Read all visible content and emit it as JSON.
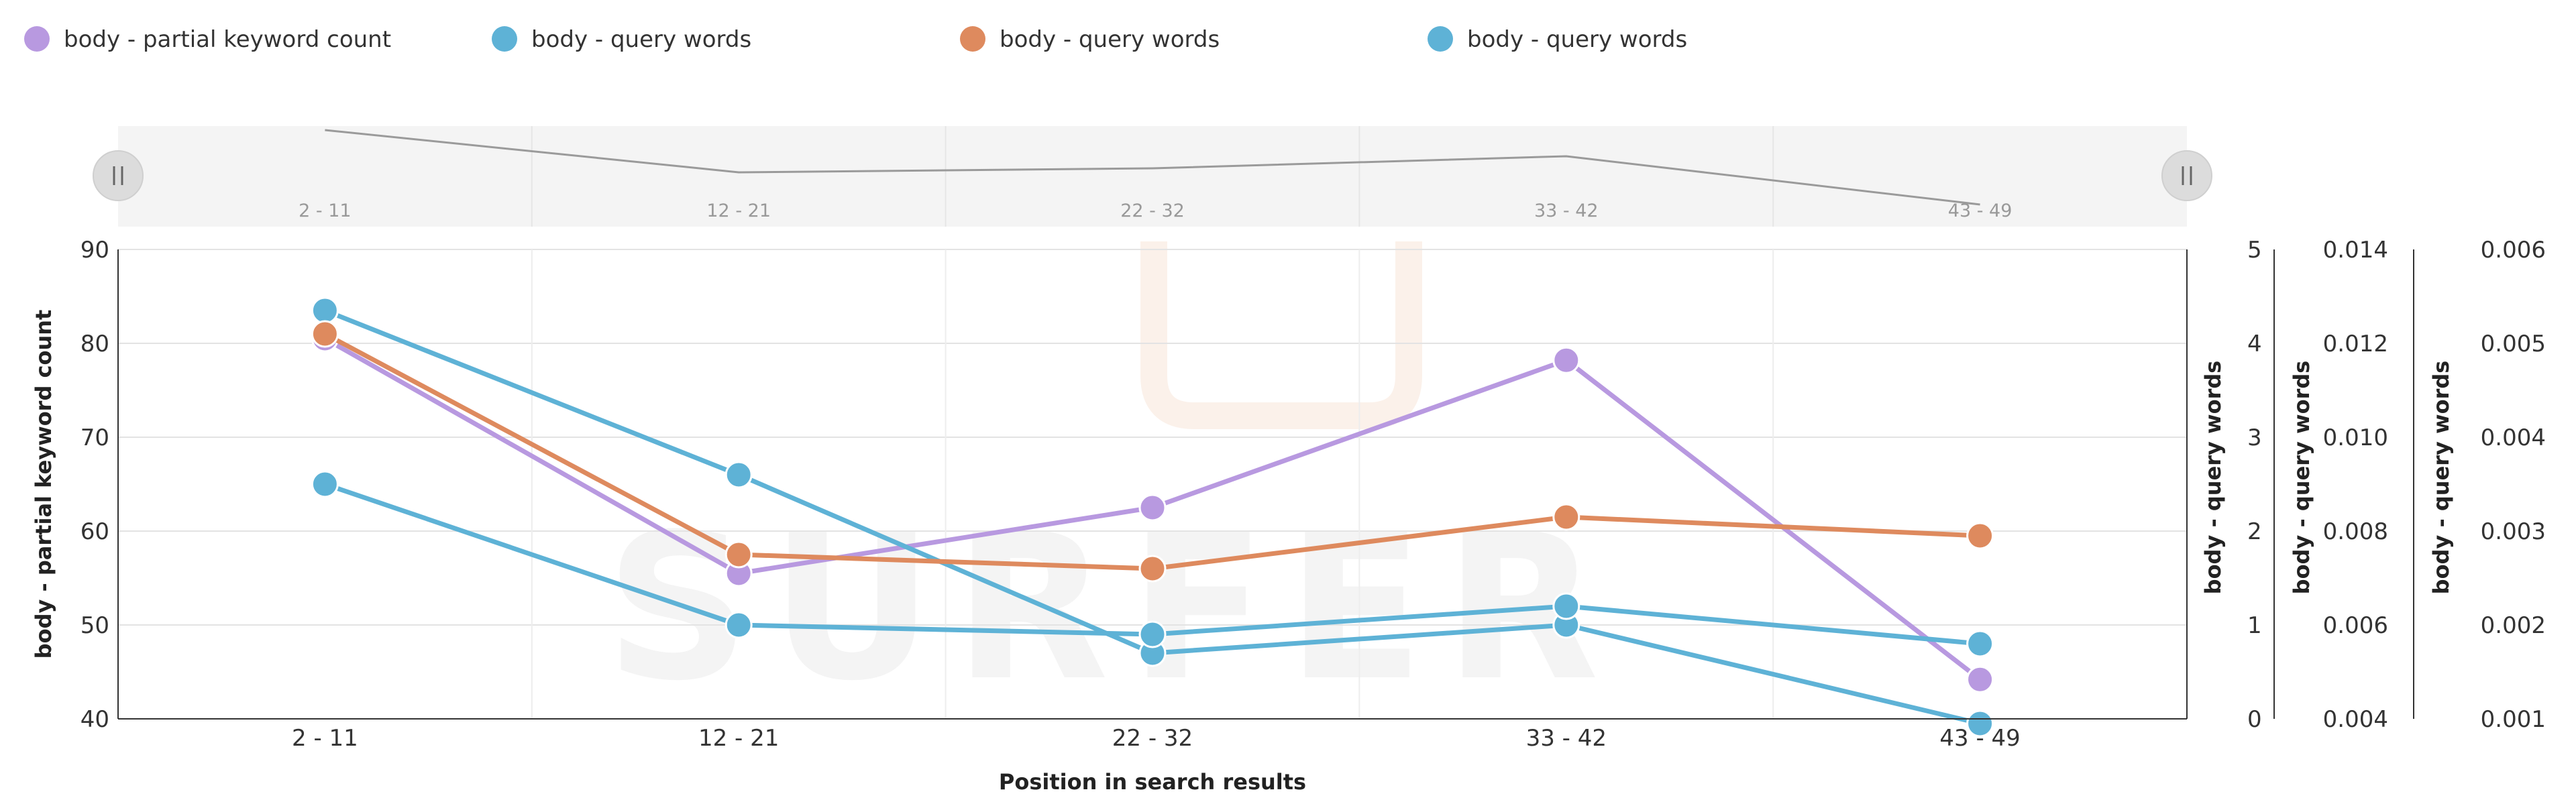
{
  "chart_data": {
    "type": "line",
    "categories": [
      "2 - 11",
      "12 - 21",
      "22 - 32",
      "33 - 42",
      "43 - 49"
    ],
    "xlabel": "Position in search results",
    "series": [
      {
        "name": "body - partial keyword count",
        "color": "#b899e0",
        "axis": "y1",
        "values": [
          80.5,
          55.5,
          62.5,
          78.2,
          44.2
        ]
      },
      {
        "name": "body - query words",
        "color": "#5eb2d6",
        "axis": "y2",
        "values": [
          4.35,
          2.6,
          0.7,
          1.0,
          -0.05
        ]
      },
      {
        "name": "body - query words",
        "color": "#de8a5e",
        "axis": "y3",
        "values": [
          0.0122,
          0.0075,
          0.0072,
          0.0083,
          0.0079
        ]
      },
      {
        "name": "body - query words",
        "color": "#5eb2d6",
        "axis": "y4",
        "values": [
          0.0035,
          0.002,
          0.0019,
          0.0022,
          0.0018
        ]
      }
    ],
    "axes": {
      "y1": {
        "label": "body - partial keyword count",
        "ylim": [
          40,
          90
        ],
        "ticks": [
          "40",
          "50",
          "60",
          "70",
          "80",
          "90"
        ]
      },
      "y2": {
        "label": "body - query words",
        "ylim": [
          0,
          5
        ],
        "ticks": [
          "0",
          "1",
          "2",
          "3",
          "4",
          "5"
        ]
      },
      "y3": {
        "label": "body - query words",
        "ylim": [
          0.004,
          0.014
        ],
        "ticks": [
          "0.004",
          "0.006",
          "0.008",
          "0.010",
          "0.012",
          "0.014"
        ]
      },
      "y4": {
        "label": "body - query words",
        "ylim": [
          0.001,
          0.006
        ],
        "ticks": [
          "0.001",
          "0.002",
          "0.003",
          "0.004",
          "0.005",
          "0.006"
        ]
      }
    },
    "legend_position": "top-left",
    "grid": true,
    "navigator_values": [
      88,
      67,
      69,
      75,
      51
    ],
    "navigator_ylim": [
      40,
      90
    ],
    "watermark": "SURFER"
  }
}
